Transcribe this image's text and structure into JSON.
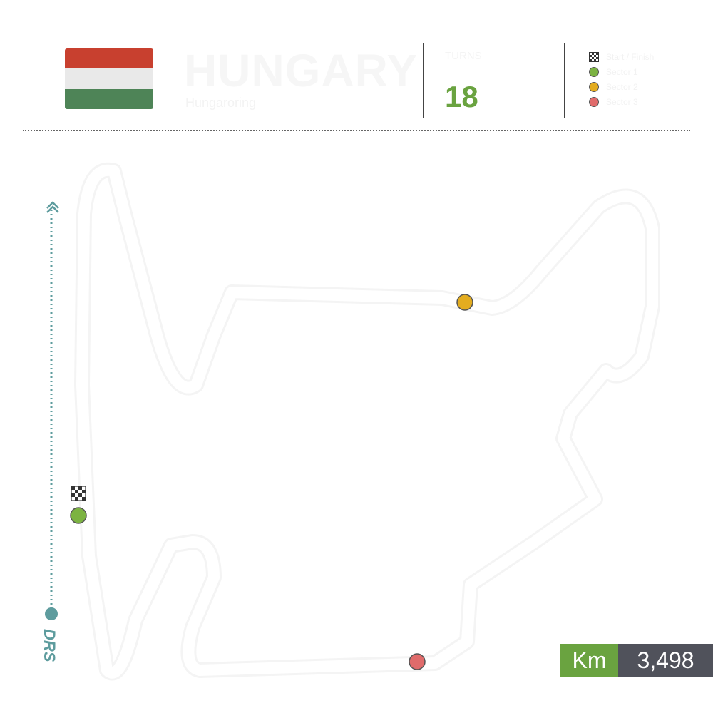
{
  "header": {
    "country": "HUNGARY",
    "subtitle": "Hungaroring",
    "turns_label": "TURNS",
    "turns_value": "18",
    "flag_colors": [
      "#c8402f",
      "#e9e9e9",
      "#4e8457"
    ]
  },
  "legend": {
    "items": [
      {
        "icon": "checkered-flag-icon",
        "label": "Start / Finish"
      },
      {
        "icon": "green-dot",
        "color": "#7cb342",
        "label": "Sector 1"
      },
      {
        "icon": "yellow-dot",
        "color": "#e3ac1f",
        "label": "Sector 2"
      },
      {
        "icon": "red-dot",
        "color": "#e06b6b",
        "label": "Sector 3"
      }
    ]
  },
  "track": {
    "drs_label": "DRS",
    "drs_color": "#5e9c9e",
    "markers": [
      {
        "name": "sector-1-marker",
        "color": "#7cb342"
      },
      {
        "name": "sector-2-marker",
        "color": "#e3ac1f"
      },
      {
        "name": "sector-3-marker",
        "color": "#e06b6b"
      }
    ]
  },
  "length": {
    "unit": "Km",
    "value": "3,498",
    "unit_bg": "#6aa340",
    "value_bg": "#50525b"
  }
}
